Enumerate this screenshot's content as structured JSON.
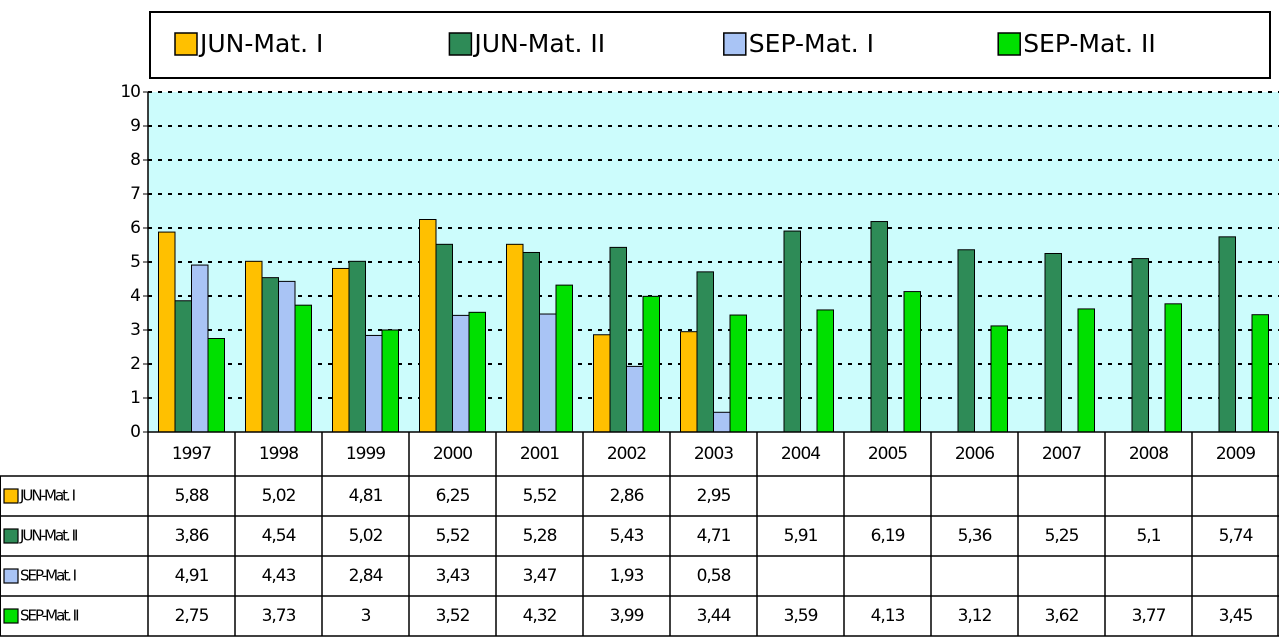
{
  "chart_data": {
    "type": "bar",
    "categories": [
      "1997",
      "1998",
      "1999",
      "2000",
      "2001",
      "2002",
      "2003",
      "2004",
      "2005",
      "2006",
      "2007",
      "2008",
      "2009"
    ],
    "series": [
      {
        "name": "JUN-Mat. I",
        "color": "#ffc000",
        "values": [
          5.88,
          5.02,
          4.81,
          6.25,
          5.52,
          2.86,
          2.95,
          null,
          null,
          null,
          null,
          null,
          null
        ],
        "value_labels": [
          "5,88",
          "5,02",
          "4,81",
          "6,25",
          "5,52",
          "2,86",
          "2,95",
          null,
          null,
          null,
          null,
          null,
          null
        ]
      },
      {
        "name": "JUN-Mat. II",
        "color": "#2e8b57",
        "values": [
          3.86,
          4.54,
          5.02,
          5.52,
          5.28,
          5.43,
          4.71,
          5.91,
          6.19,
          5.36,
          5.25,
          5.1,
          5.74
        ],
        "value_labels": [
          "3,86",
          "4,54",
          "5,02",
          "5,52",
          "5,28",
          "5,43",
          "4,71",
          "5,91",
          "6,19",
          "5,36",
          "5,25",
          "5,1",
          "5,74"
        ]
      },
      {
        "name": "SEP-Mat. I",
        "color": "#a9c4f5",
        "values": [
          4.91,
          4.43,
          2.84,
          3.43,
          3.47,
          1.93,
          0.58,
          null,
          null,
          null,
          null,
          null,
          null
        ],
        "value_labels": [
          "4,91",
          "4,43",
          "2,84",
          "3,43",
          "3,47",
          "1,93",
          "0,58",
          null,
          null,
          null,
          null,
          null,
          null
        ]
      },
      {
        "name": "SEP-Mat. II",
        "color": "#00e000",
        "values": [
          2.75,
          3.73,
          3,
          3.52,
          4.32,
          3.99,
          3.44,
          3.59,
          4.13,
          3.12,
          3.62,
          3.77,
          3.45
        ],
        "value_labels": [
          "2,75",
          "3,73",
          "3",
          "3,52",
          "4,32",
          "3,99",
          "3,44",
          "3,59",
          "4,13",
          "3,12",
          "3,62",
          "3,77",
          "3,45"
        ]
      }
    ],
    "ylim": [
      0,
      10
    ],
    "yticks": [
      0,
      1,
      2,
      3,
      4,
      5,
      6,
      7,
      8,
      9,
      10
    ],
    "grid": true,
    "legend": "top"
  }
}
